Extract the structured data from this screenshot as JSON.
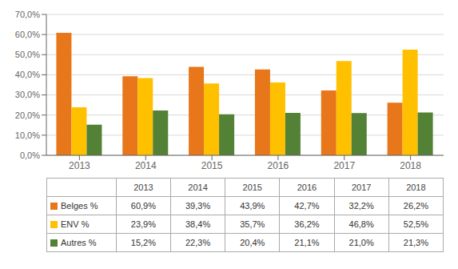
{
  "chart_data": {
    "type": "bar",
    "categories": [
      "2013",
      "2014",
      "2015",
      "2016",
      "2017",
      "2018"
    ],
    "series": [
      {
        "name": "Belges %",
        "color": "#E8761A",
        "values": [
          60.9,
          39.3,
          43.9,
          42.7,
          32.2,
          26.2
        ],
        "value_labels": [
          "60,9%",
          "39,3%",
          "43,9%",
          "42,7%",
          "32,2%",
          "26,2%"
        ]
      },
      {
        "name": "ENV %",
        "color": "#FFC000",
        "values": [
          23.9,
          38.4,
          35.7,
          36.2,
          46.8,
          52.5
        ],
        "value_labels": [
          "23,9%",
          "38,4%",
          "35,7%",
          "36,2%",
          "46,8%",
          "52,5%"
        ]
      },
      {
        "name": "Autres %",
        "color": "#538135",
        "values": [
          15.2,
          22.3,
          20.4,
          21.1,
          21.0,
          21.3
        ],
        "value_labels": [
          "15,2%",
          "22,3%",
          "20,4%",
          "21,1%",
          "21,0%",
          "21,3%"
        ]
      }
    ],
    "ylim": [
      0,
      70
    ],
    "yticks": [
      {
        "value": 0,
        "label": "0,0%"
      },
      {
        "value": 10,
        "label": "10,0%"
      },
      {
        "value": 20,
        "label": "20,0%"
      },
      {
        "value": 30,
        "label": "30,0%"
      },
      {
        "value": 40,
        "label": "40,0%"
      },
      {
        "value": 50,
        "label": "50,0%"
      },
      {
        "value": 60,
        "label": "60,0%"
      },
      {
        "value": 70,
        "label": "70,0%"
      }
    ],
    "grid": true
  }
}
